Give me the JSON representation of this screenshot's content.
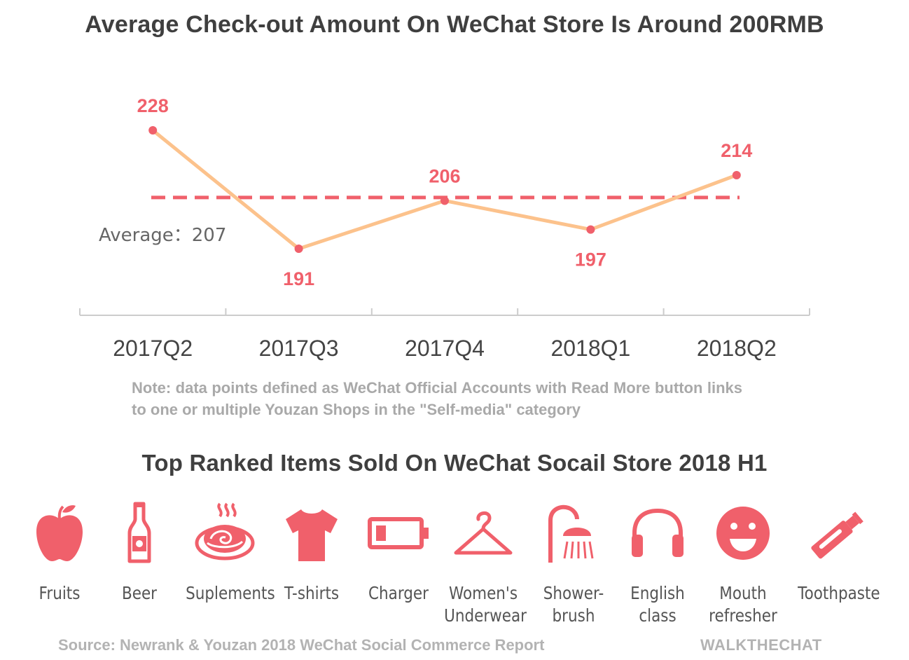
{
  "chart_data": {
    "type": "line",
    "title": "Average Check-out Amount On WeChat Store Is Around 200RMB",
    "categories": [
      "2017Q2",
      "2017Q3",
      "2017Q4",
      "2018Q1",
      "2018Q2"
    ],
    "values": [
      228,
      191,
      206,
      197,
      214
    ],
    "data_labels": [
      "228",
      "191",
      "206",
      "197",
      "214"
    ],
    "reference_line": {
      "value": 207,
      "label": "Average：207",
      "style": "dashed"
    },
    "colors": {
      "line": "#fcc28c",
      "points": "#f0606b",
      "labels": "#f0606b",
      "reference": "#f0606b",
      "axis": "#cccccc"
    },
    "grid": false,
    "legend": "none"
  },
  "note": "Note: data points defined as WeChat Official Accounts with Read More button links to one or multiple Youzan Shops in the \"Self-media\" category",
  "section2": {
    "title": "Top Ranked Items Sold On WeChat Socail Store 2018 H1",
    "icon_color": "#f0606b",
    "items": [
      {
        "icon": "apple-icon",
        "label": "Fruits"
      },
      {
        "icon": "beer-bottle-icon",
        "label": "Beer"
      },
      {
        "icon": "supplement-bowl-icon",
        "label": "Suplements"
      },
      {
        "icon": "tshirt-icon",
        "label": "T-shirts"
      },
      {
        "icon": "battery-charger-icon",
        "label": "Charger"
      },
      {
        "icon": "hanger-icon",
        "label": "Women's Underwear"
      },
      {
        "icon": "shower-icon",
        "label": "Shower-brush"
      },
      {
        "icon": "headphones-icon",
        "label": "English class"
      },
      {
        "icon": "smiley-face-icon",
        "label": "Mouth refresher"
      },
      {
        "icon": "toothpaste-tube-icon",
        "label": "Toothpaste"
      }
    ]
  },
  "footer": {
    "source": "Source: Newrank & Youzan 2018 WeChat Social Commerce Report",
    "brand": "WALKTHECHAT"
  }
}
